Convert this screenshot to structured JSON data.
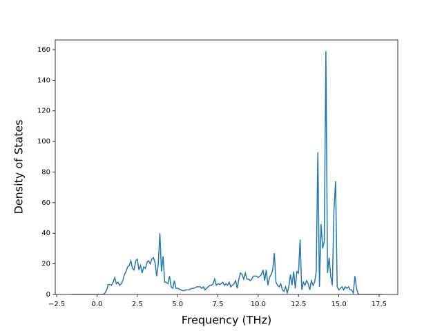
{
  "chart_data": {
    "type": "line",
    "xlabel": "Frequency (THz)",
    "ylabel": "Density of States",
    "xlim": [
      -2.59,
      18.66
    ],
    "ylim": [
      0,
      166.3
    ],
    "xticks": [
      {
        "value": -2.5,
        "label": "−2.5"
      },
      {
        "value": 0,
        "label": "0.0"
      },
      {
        "value": 2.5,
        "label": "2.5"
      },
      {
        "value": 5,
        "label": "5.0"
      },
      {
        "value": 7.5,
        "label": "7.5"
      },
      {
        "value": 10,
        "label": "10.0"
      },
      {
        "value": 12.5,
        "label": "12.5"
      },
      {
        "value": 15,
        "label": "15.0"
      },
      {
        "value": 17.5,
        "label": "17.5"
      }
    ],
    "yticks": [
      0,
      20,
      40,
      60,
      80,
      100,
      120,
      140,
      160
    ],
    "color": "#1f77b4",
    "x": [
      -1.6,
      -1.5,
      -1.4,
      -1.3,
      -1.2,
      -1.1,
      -1.0,
      -0.9,
      -0.8,
      -0.7,
      -0.6,
      -0.5,
      -0.4,
      -0.3,
      -0.2,
      -0.1,
      0.0,
      0.1,
      0.2,
      0.3,
      0.4,
      0.5,
      0.6,
      0.7,
      0.8,
      0.9,
      1.0,
      1.1,
      1.2,
      1.3,
      1.4,
      1.5,
      1.6,
      1.7,
      1.8,
      1.9,
      2.0,
      2.1,
      2.2,
      2.3,
      2.4,
      2.5,
      2.6,
      2.7,
      2.8,
      2.9,
      3.0,
      3.1,
      3.2,
      3.3,
      3.4,
      3.5,
      3.6,
      3.7,
      3.8,
      3.9,
      4.0,
      4.1,
      4.2,
      4.3,
      4.4,
      4.5,
      4.6,
      4.7,
      4.8,
      4.9,
      5.0,
      5.1,
      5.2,
      5.3,
      5.4,
      5.5,
      5.6,
      5.7,
      5.8,
      5.9,
      6.0,
      6.1,
      6.2,
      6.3,
      6.4,
      6.5,
      6.6,
      6.7,
      6.8,
      6.9,
      7.0,
      7.1,
      7.2,
      7.3,
      7.4,
      7.5,
      7.6,
      7.7,
      7.8,
      7.9,
      8.0,
      8.1,
      8.2,
      8.3,
      8.4,
      8.5,
      8.6,
      8.7,
      8.8,
      8.9,
      9.0,
      9.1,
      9.2,
      9.3,
      9.4,
      9.5,
      9.6,
      9.7,
      9.8,
      9.9,
      10.0,
      10.1,
      10.2,
      10.3,
      10.4,
      10.5,
      10.6,
      10.7,
      10.8,
      10.9,
      11.0,
      11.1,
      11.2,
      11.3,
      11.4,
      11.5,
      11.6,
      11.7,
      11.8,
      11.9,
      12.0,
      12.1,
      12.2,
      12.3,
      12.4,
      12.5,
      12.6,
      12.7,
      12.8,
      12.9,
      13.0,
      13.1,
      13.2,
      13.3,
      13.4,
      13.5,
      13.6,
      13.7,
      13.8,
      13.9,
      14.0,
      14.1,
      14.2,
      14.3,
      14.4,
      14.5,
      14.6,
      14.7,
      14.8,
      14.9,
      15.0,
      15.1,
      15.2,
      15.3,
      15.4,
      15.5,
      15.6,
      15.7,
      15.8,
      15.9,
      16.0,
      16.1,
      16.2,
      16.3,
      16.4,
      16.5,
      16.6,
      16.7,
      16.8,
      16.9,
      17.0,
      17.1,
      17.2,
      17.3,
      17.4,
      17.5,
      17.6,
      17.7
    ],
    "values": [
      0,
      0,
      0,
      0,
      0,
      0,
      0,
      0,
      0,
      0,
      0,
      0,
      0,
      0,
      0,
      0,
      0,
      0,
      0,
      0,
      0,
      1,
      3,
      6.5,
      6.5,
      6,
      8,
      11,
      7,
      8,
      6,
      7,
      9,
      13,
      15,
      18,
      19,
      22,
      17,
      16,
      22,
      23,
      16,
      19,
      14,
      18,
      17,
      21,
      22,
      20,
      23,
      24,
      21,
      12,
      20,
      40,
      15,
      25,
      8,
      8,
      7,
      12,
      5,
      4,
      9,
      4,
      4,
      3.5,
      3,
      2.5,
      2.5,
      3,
      3,
      3,
      3.5,
      4,
      4,
      4.5,
      5,
      5,
      5,
      4,
      5,
      3,
      4,
      5,
      6,
      6,
      7,
      10,
      6,
      7,
      6.5,
      7,
      8,
      6,
      7,
      6,
      8,
      5,
      6,
      7,
      9,
      4,
      10,
      14,
      13,
      10,
      14,
      10,
      10,
      9,
      10,
      12,
      12,
      12,
      11,
      12,
      13,
      16,
      9,
      16,
      6,
      11,
      13,
      16,
      27,
      8,
      6,
      5,
      7,
      3,
      2,
      5,
      1,
      5,
      13,
      6,
      15,
      4,
      15,
      14,
      36,
      3,
      8,
      6,
      9,
      7,
      3,
      9,
      6,
      8,
      15,
      93,
      5,
      46,
      30,
      35,
      159,
      14,
      24,
      12,
      6,
      55,
      74,
      5,
      3,
      4,
      5,
      3,
      5,
      4,
      5,
      3,
      3,
      1,
      12,
      4,
      0.5,
      0,
      0,
      0,
      0,
      0,
      0,
      0,
      0,
      0,
      0,
      0,
      0,
      0,
      0,
      0
    ]
  }
}
